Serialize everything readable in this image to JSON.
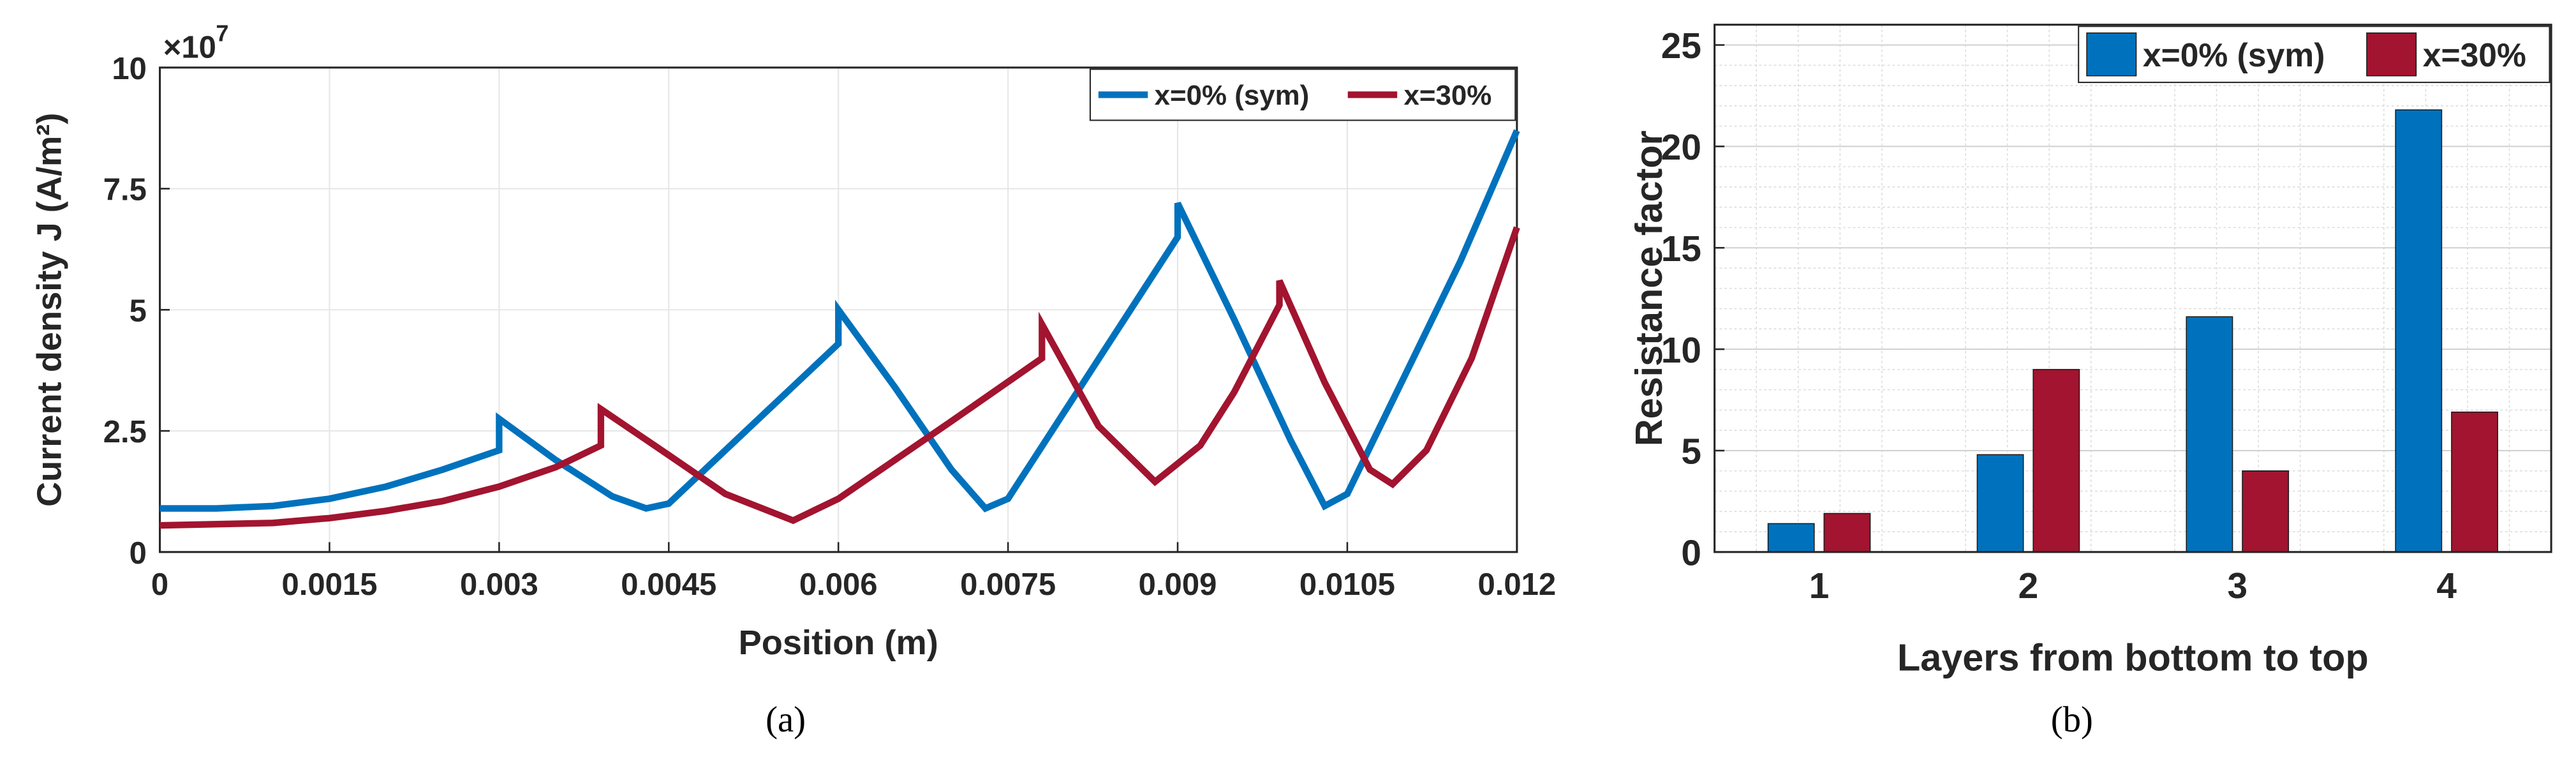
{
  "chart_data": [
    {
      "type": "line",
      "caption": "(a)",
      "xlabel": "Position (m)",
      "ylabel": "Current density J (A/m²)",
      "y_exponent_label": {
        "base": "×10",
        "exponent": "7"
      },
      "xlim": [
        0,
        0.012
      ],
      "xticks": [
        0,
        0.0015,
        0.003,
        0.0045,
        0.006,
        0.0075,
        0.009,
        0.0105,
        0.012
      ],
      "ylim": [
        0,
        10
      ],
      "yticks": [
        0,
        2.5,
        5,
        7.5,
        10
      ],
      "grid": true,
      "legend": "upper right",
      "series": [
        {
          "name": "x=0% (sym)",
          "color": "#0072bd",
          "x": [
            0,
            0.0005,
            0.001,
            0.0015,
            0.002,
            0.0025,
            0.003,
            0.003,
            0.0035,
            0.004,
            0.0043,
            0.0045,
            0.005,
            0.0055,
            0.006,
            0.006,
            0.0065,
            0.007,
            0.0073,
            0.0075,
            0.008,
            0.0085,
            0.009,
            0.009,
            0.0095,
            0.01,
            0.0103,
            0.0105,
            0.011,
            0.0115,
            0.012
          ],
          "values": [
            0.9,
            0.9,
            0.95,
            1.1,
            1.35,
            1.7,
            2.1,
            2.75,
            1.9,
            1.15,
            0.9,
            1.0,
            2.1,
            3.2,
            4.3,
            5.0,
            3.4,
            1.7,
            0.9,
            1.1,
            2.9,
            4.7,
            6.5,
            7.2,
            4.8,
            2.3,
            0.95,
            1.2,
            3.6,
            6.0,
            8.7
          ]
        },
        {
          "name": "x=30%",
          "color": "#a2142f",
          "x": [
            0,
            0.001,
            0.0015,
            0.002,
            0.0025,
            0.003,
            0.0035,
            0.0039,
            0.0039,
            0.0045,
            0.005,
            0.0056,
            0.006,
            0.0065,
            0.007,
            0.0078,
            0.0078,
            0.0083,
            0.0088,
            0.0092,
            0.0095,
            0.0099,
            0.0099,
            0.0103,
            0.0107,
            0.0109,
            0.0112,
            0.0116,
            0.012
          ],
          "values": [
            0.55,
            0.6,
            0.7,
            0.85,
            1.05,
            1.35,
            1.75,
            2.2,
            2.95,
            2.0,
            1.2,
            0.65,
            1.1,
            1.9,
            2.7,
            4.0,
            4.7,
            2.6,
            1.45,
            2.2,
            3.3,
            5.1,
            5.6,
            3.5,
            1.7,
            1.4,
            2.1,
            4.0,
            6.7
          ]
        }
      ]
    },
    {
      "type": "bar",
      "caption": "(b)",
      "xlabel": "Layers from bottom to top",
      "ylabel": "Resistance factor",
      "categories": [
        "1",
        "2",
        "3",
        "4"
      ],
      "ylim": [
        0,
        26
      ],
      "yticks": [
        0,
        5,
        10,
        15,
        20,
        25
      ],
      "grid": true,
      "minor_grid": true,
      "legend": "upper right",
      "series": [
        {
          "name": "x=0% (sym)",
          "color": "#0072bd",
          "values": [
            1.4,
            4.8,
            11.6,
            21.8
          ]
        },
        {
          "name": "x=30%",
          "color": "#a2142f",
          "values": [
            1.9,
            9.0,
            4.0,
            6.9
          ]
        }
      ]
    }
  ]
}
